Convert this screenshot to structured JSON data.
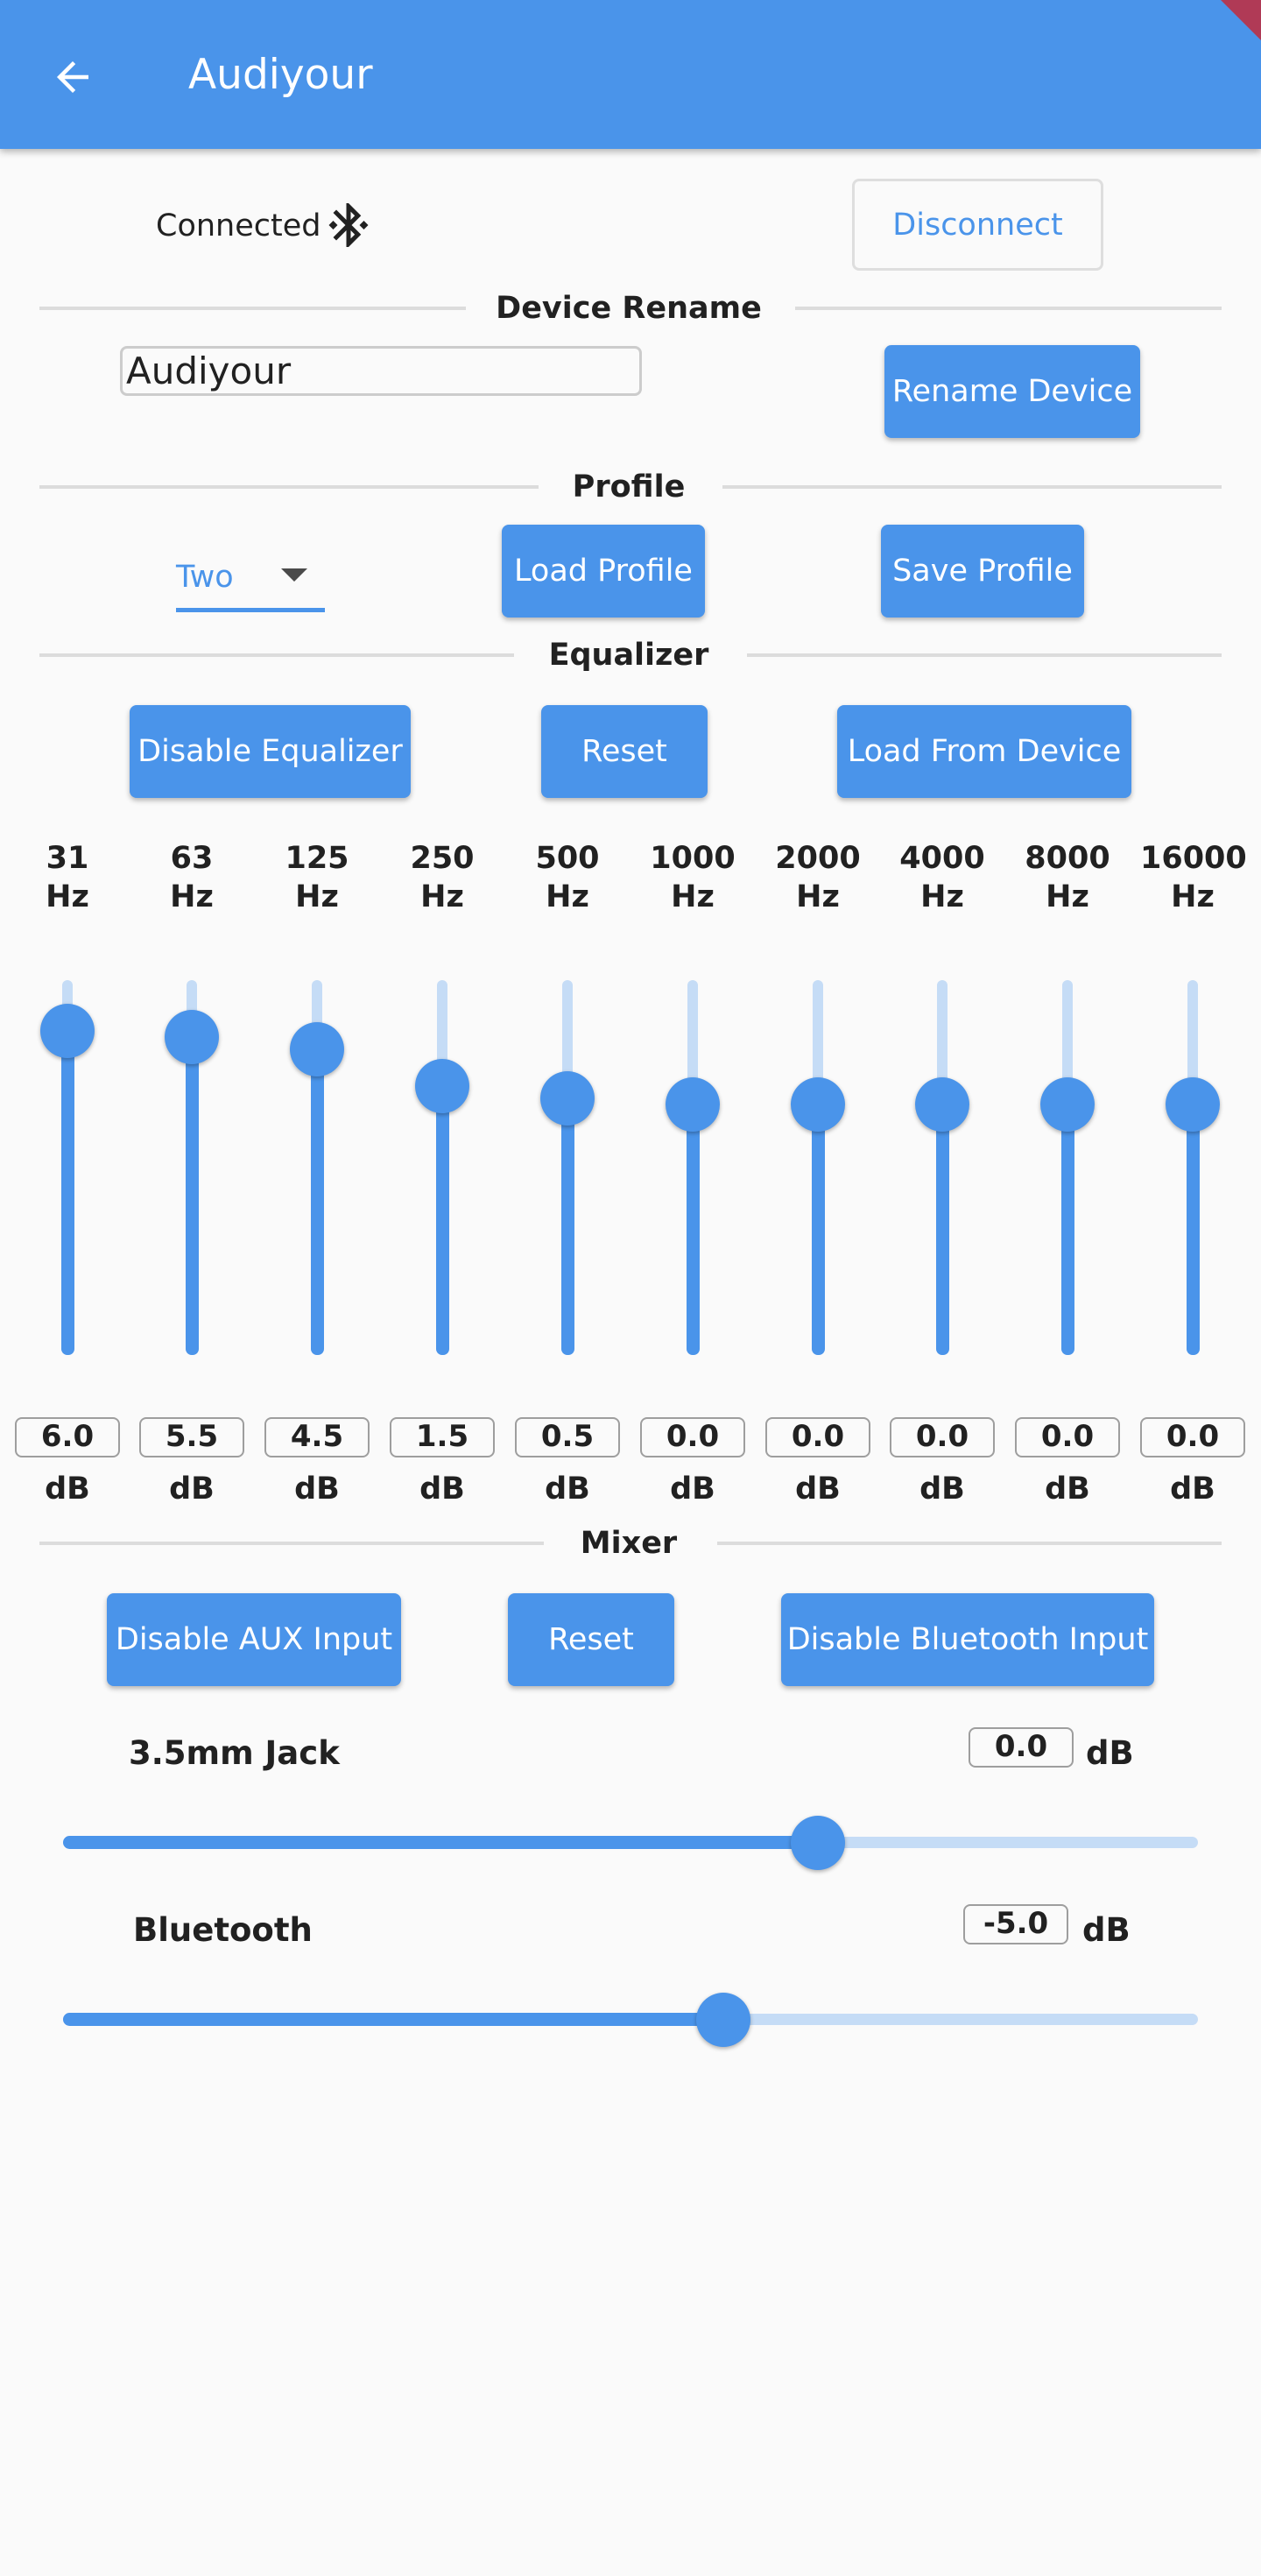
{
  "app_bar": {
    "title": "Audiyour"
  },
  "connection": {
    "status": "Connected",
    "disconnect_label": "Disconnect"
  },
  "device_rename": {
    "section_title": "Device Rename",
    "name_value": "Audiyour",
    "rename_label": "Rename Device"
  },
  "profile": {
    "section_title": "Profile",
    "selected": "Two",
    "load_label": "Load Profile",
    "save_label": "Save Profile"
  },
  "equalizer": {
    "section_title": "Equalizer",
    "disable_label": "Disable Equalizer",
    "reset_label": "Reset",
    "load_label": "Load From Device",
    "bands": [
      {
        "freq": "31",
        "unit": "Hz",
        "value": "6.0",
        "db_unit": "dB",
        "level": 6.0
      },
      {
        "freq": "63",
        "unit": "Hz",
        "value": "5.5",
        "db_unit": "dB",
        "level": 5.5
      },
      {
        "freq": "125",
        "unit": "Hz",
        "value": "4.5",
        "db_unit": "dB",
        "level": 4.5
      },
      {
        "freq": "250",
        "unit": "Hz",
        "value": "1.5",
        "db_unit": "dB",
        "level": 1.5
      },
      {
        "freq": "500",
        "unit": "Hz",
        "value": "0.5",
        "db_unit": "dB",
        "level": 0.5
      },
      {
        "freq": "1000",
        "unit": "Hz",
        "value": "0.0",
        "db_unit": "dB",
        "level": 0.0
      },
      {
        "freq": "2000",
        "unit": "Hz",
        "value": "0.0",
        "db_unit": "dB",
        "level": 0.0
      },
      {
        "freq": "4000",
        "unit": "Hz",
        "value": "0.0",
        "db_unit": "dB",
        "level": 0.0
      },
      {
        "freq": "8000",
        "unit": "Hz",
        "value": "0.0",
        "db_unit": "dB",
        "level": 0.0
      },
      {
        "freq": "16000",
        "unit": "Hz",
        "value": "0.0",
        "db_unit": "dB",
        "level": 0.0
      }
    ]
  },
  "mixer": {
    "section_title": "Mixer",
    "disable_aux_label": "Disable AUX Input",
    "reset_label": "Reset",
    "disable_bt_label": "Disable Bluetooth Input",
    "channels": [
      {
        "label": "3.5mm Jack",
        "value": "0.0",
        "unit": "dB",
        "fraction": 0.665
      },
      {
        "label": "Bluetooth",
        "value": "-5.0",
        "unit": "dB",
        "fraction": 0.582
      }
    ]
  },
  "icons": {
    "back": "arrow-back-icon",
    "bluetooth": "bluetooth-connected-icon",
    "dropdown": "dropdown-arrow-icon"
  },
  "colors": {
    "primary": "#4a94ea",
    "track_inactive": "#c5dcf6",
    "background": "#fafafa"
  }
}
